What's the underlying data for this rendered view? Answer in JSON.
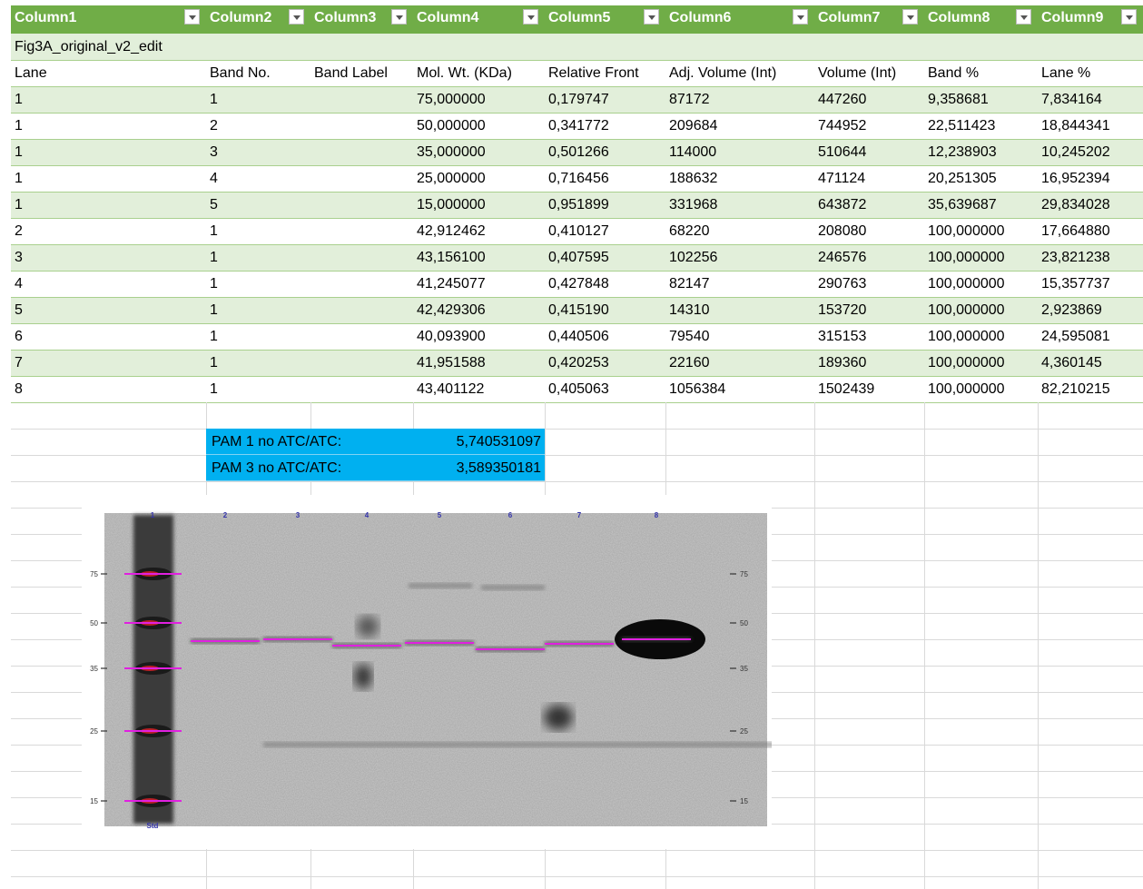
{
  "header": {
    "columns": [
      "Column1",
      "Column2",
      "Column3",
      "Column4",
      "Column5",
      "Column6",
      "Column7",
      "Column8",
      "Column9"
    ]
  },
  "title": "Fig3A_original_v2_edit",
  "table": {
    "headers": [
      "Lane",
      "Band No.",
      "Band Label",
      "Mol. Wt. (KDa)",
      "Relative Front",
      "Adj. Volume (Int)",
      "Volume (Int)",
      "Band %",
      "Lane %"
    ],
    "rows": [
      [
        "1",
        "1",
        null,
        "75,000000",
        "0,179747",
        "87172",
        "447260",
        "9,358681",
        "7,834164"
      ],
      [
        "1",
        "2",
        null,
        "50,000000",
        "0,341772",
        "209684",
        "744952",
        "22,511423",
        "18,844341"
      ],
      [
        "1",
        "3",
        null,
        "35,000000",
        "0,501266",
        "114000",
        "510644",
        "12,238903",
        "10,245202"
      ],
      [
        "1",
        "4",
        null,
        "25,000000",
        "0,716456",
        "188632",
        "471124",
        "20,251305",
        "16,952394"
      ],
      [
        "1",
        "5",
        null,
        "15,000000",
        "0,951899",
        "331968",
        "643872",
        "35,639687",
        "29,834028"
      ],
      [
        "2",
        "1",
        null,
        "42,912462",
        "0,410127",
        "68220",
        "208080",
        "100,000000",
        "17,664880"
      ],
      [
        "3",
        "1",
        null,
        "43,156100",
        "0,407595",
        "102256",
        "246576",
        "100,000000",
        "23,821238"
      ],
      [
        "4",
        "1",
        null,
        "41,245077",
        "0,427848",
        "82147",
        "290763",
        "100,000000",
        "15,357737"
      ],
      [
        "5",
        "1",
        null,
        "42,429306",
        "0,415190",
        "14310",
        "153720",
        "100,000000",
        "2,923869"
      ],
      [
        "6",
        "1",
        null,
        "40,093900",
        "0,440506",
        "79540",
        "315153",
        "100,000000",
        "24,595081"
      ],
      [
        "7",
        "1",
        null,
        "41,951588",
        "0,420253",
        "22160",
        "189360",
        "100,000000",
        "4,360145"
      ],
      [
        "8",
        "1",
        null,
        "43,401122",
        "0,405063",
        "1056384",
        "1502439",
        "100,000000",
        "82,210215"
      ]
    ]
  },
  "summary": [
    {
      "label": "PAM 1 no ATC/ATC:",
      "value": "5,740531097"
    },
    {
      "label": "PAM 3 no ATC/ATC:",
      "value": "3,589350181"
    }
  ],
  "gel": {
    "lane_labels": [
      "1",
      "2",
      "3",
      "4",
      "5",
      "6",
      "7",
      "8"
    ],
    "bottom_label": "Std",
    "markers": [
      "75",
      "50",
      "35",
      "25",
      "15"
    ]
  }
}
